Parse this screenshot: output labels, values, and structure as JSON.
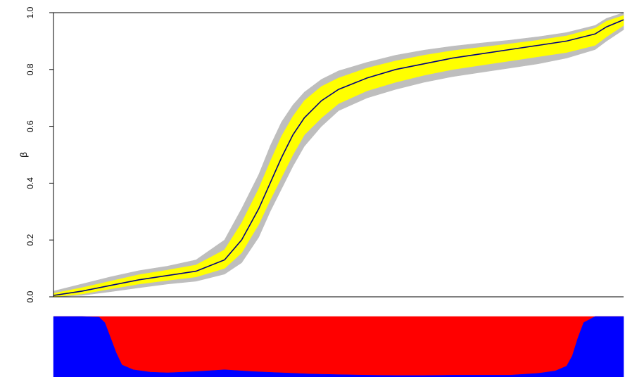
{
  "chart_data": [
    {
      "type": "area",
      "title": "",
      "xlabel": "",
      "ylabel": "β",
      "ylim": [
        0,
        1
      ],
      "xlim": [
        0,
        1
      ],
      "yticks": [
        "0.0",
        "0.2",
        "0.4",
        "0.6",
        "0.8",
        "1.0"
      ],
      "ytick_values": [
        0,
        0.2,
        0.4,
        0.6,
        0.8,
        1.0
      ],
      "x_axis_ticks_shown": false,
      "grid": false,
      "series": [
        {
          "role": "median",
          "color": "#000080",
          "x": [
            0,
            0.05,
            0.1,
            0.15,
            0.2,
            0.25,
            0.3,
            0.33,
            0.36,
            0.38,
            0.4,
            0.42,
            0.44,
            0.47,
            0.5,
            0.55,
            0.6,
            0.65,
            0.7,
            0.75,
            0.8,
            0.85,
            0.9,
            0.95,
            0.97,
            1.0
          ],
          "values": [
            0.005,
            0.02,
            0.04,
            0.06,
            0.075,
            0.09,
            0.13,
            0.2,
            0.31,
            0.4,
            0.49,
            0.57,
            0.63,
            0.69,
            0.73,
            0.77,
            0.8,
            0.82,
            0.84,
            0.855,
            0.87,
            0.885,
            0.9,
            0.925,
            0.95,
            0.975
          ]
        },
        {
          "role": "inner band",
          "color": "#ffff00",
          "x": [
            0,
            0.05,
            0.1,
            0.15,
            0.2,
            0.25,
            0.3,
            0.33,
            0.36,
            0.38,
            0.4,
            0.42,
            0.44,
            0.47,
            0.5,
            0.55,
            0.6,
            0.65,
            0.7,
            0.75,
            0.8,
            0.85,
            0.9,
            0.95,
            0.97,
            1.0
          ],
          "lower": [
            0.0,
            0.01,
            0.028,
            0.045,
            0.058,
            0.07,
            0.1,
            0.155,
            0.255,
            0.34,
            0.42,
            0.5,
            0.57,
            0.63,
            0.68,
            0.725,
            0.755,
            0.78,
            0.8,
            0.815,
            0.83,
            0.845,
            0.86,
            0.885,
            0.915,
            0.955
          ],
          "upper": [
            0.012,
            0.032,
            0.055,
            0.078,
            0.094,
            0.112,
            0.165,
            0.26,
            0.38,
            0.475,
            0.565,
            0.635,
            0.69,
            0.74,
            0.77,
            0.805,
            0.83,
            0.85,
            0.866,
            0.878,
            0.89,
            0.903,
            0.918,
            0.945,
            0.97,
            0.99
          ]
        },
        {
          "role": "outer band",
          "color": "#bebebe",
          "x": [
            0,
            0.05,
            0.1,
            0.15,
            0.2,
            0.25,
            0.3,
            0.33,
            0.36,
            0.38,
            0.4,
            0.42,
            0.44,
            0.47,
            0.5,
            0.55,
            0.6,
            0.65,
            0.7,
            0.75,
            0.8,
            0.85,
            0.9,
            0.95,
            0.97,
            1.0
          ],
          "lower": [
            0.0,
            0.005,
            0.018,
            0.032,
            0.045,
            0.055,
            0.08,
            0.12,
            0.21,
            0.3,
            0.38,
            0.46,
            0.53,
            0.6,
            0.655,
            0.7,
            0.73,
            0.755,
            0.775,
            0.79,
            0.805,
            0.82,
            0.84,
            0.87,
            0.9,
            0.94
          ],
          "upper": [
            0.02,
            0.045,
            0.07,
            0.092,
            0.108,
            0.13,
            0.2,
            0.31,
            0.43,
            0.53,
            0.615,
            0.675,
            0.72,
            0.765,
            0.795,
            0.825,
            0.85,
            0.868,
            0.882,
            0.893,
            0.903,
            0.915,
            0.93,
            0.955,
            0.98,
            1.0
          ]
        }
      ]
    },
    {
      "type": "area",
      "stacked": true,
      "title": "",
      "xlabel": "",
      "ylabel": "",
      "ylim": [
        0,
        1
      ],
      "xlim": [
        0,
        1
      ],
      "axes_shown": false,
      "x": [
        0,
        0.05,
        0.08,
        0.09,
        0.1,
        0.11,
        0.12,
        0.14,
        0.17,
        0.2,
        0.25,
        0.3,
        0.35,
        0.4,
        0.45,
        0.5,
        0.55,
        0.6,
        0.65,
        0.7,
        0.75,
        0.8,
        0.85,
        0.88,
        0.9,
        0.91,
        0.92,
        0.93,
        0.95,
        1.0
      ],
      "series": [
        {
          "color": "#0000ff",
          "values": [
            1.0,
            1.0,
            0.99,
            0.9,
            0.65,
            0.4,
            0.2,
            0.12,
            0.08,
            0.07,
            0.09,
            0.12,
            0.09,
            0.07,
            0.05,
            0.04,
            0.03,
            0.025,
            0.025,
            0.03,
            0.03,
            0.03,
            0.06,
            0.1,
            0.18,
            0.35,
            0.65,
            0.9,
            1.0,
            1.0
          ]
        },
        {
          "color": "#ff0000",
          "values": [
            0.0,
            0.0,
            0.01,
            0.1,
            0.35,
            0.6,
            0.8,
            0.88,
            0.92,
            0.93,
            0.91,
            0.88,
            0.91,
            0.93,
            0.95,
            0.96,
            0.97,
            0.975,
            0.975,
            0.97,
            0.97,
            0.97,
            0.94,
            0.9,
            0.82,
            0.65,
            0.35,
            0.1,
            0.0,
            0.0
          ]
        }
      ]
    }
  ]
}
